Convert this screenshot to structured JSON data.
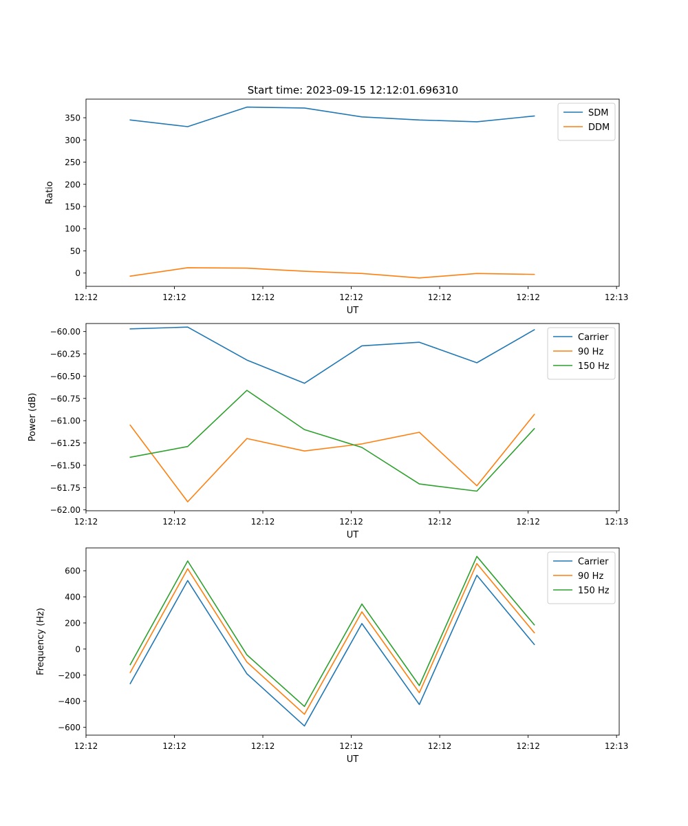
{
  "figure": {
    "title": "Start time: 2023-09-15 12:12:01.696310"
  },
  "colors": {
    "blue": "#1f77b4",
    "orange": "#ff7f0e",
    "green": "#2ca02c",
    "axes": "#000000",
    "legend_border": "#cccccc"
  },
  "chart_data": [
    {
      "type": "line",
      "title": "Start time: 2023-09-15 12:12:01.696310",
      "xlabel": "UT",
      "ylabel": "Ratio",
      "x": [
        0.5,
        1.15,
        1.82,
        2.47,
        3.12,
        3.77,
        4.42,
        5.07
      ],
      "xlim": [
        0,
        6.03
      ],
      "xticks": [
        {
          "value": 0,
          "label": "12:12"
        },
        {
          "value": 1,
          "label": "12:12"
        },
        {
          "value": 2,
          "label": "12:12"
        },
        {
          "value": 3,
          "label": "12:12"
        },
        {
          "value": 4,
          "label": "12:12"
        },
        {
          "value": 5,
          "label": "12:12"
        },
        {
          "value": 6,
          "label": "12:13"
        }
      ],
      "ylim": [
        -30,
        392
      ],
      "yticks": [
        0,
        50,
        100,
        150,
        200,
        250,
        300,
        350
      ],
      "legend": "upper right",
      "series": [
        {
          "name": "SDM",
          "color": "blue",
          "values": [
            345,
            330,
            374,
            372,
            352,
            345,
            341,
            354
          ]
        },
        {
          "name": "DDM",
          "color": "orange",
          "values": [
            -7,
            12,
            11,
            4,
            -1,
            -11,
            -1,
            -3
          ]
        }
      ]
    },
    {
      "type": "line",
      "xlabel": "UT",
      "ylabel": "Power (dB)",
      "x": [
        0.5,
        1.15,
        1.82,
        2.47,
        3.12,
        3.77,
        4.42,
        5.07
      ],
      "xlim": [
        0,
        6.03
      ],
      "xticks": [
        {
          "value": 0,
          "label": "12:12"
        },
        {
          "value": 1,
          "label": "12:12"
        },
        {
          "value": 2,
          "label": "12:12"
        },
        {
          "value": 3,
          "label": "12:12"
        },
        {
          "value": 4,
          "label": "12:12"
        },
        {
          "value": 5,
          "label": "12:12"
        },
        {
          "value": 6,
          "label": "12:13"
        }
      ],
      "ylim": [
        -62.01,
        -59.91
      ],
      "yticks": [
        -62.0,
        -61.75,
        -61.5,
        -61.25,
        -61.0,
        -60.75,
        -60.5,
        -60.25,
        -60.0
      ],
      "yticklabels": [
        "−62.00",
        "−61.75",
        "−61.50",
        "−61.25",
        "−61.00",
        "−60.75",
        "−60.50",
        "−60.25",
        "−60.00"
      ],
      "legend": "upper right",
      "series": [
        {
          "name": "Carrier",
          "color": "blue",
          "values": [
            -59.97,
            -59.95,
            -60.32,
            -60.58,
            -60.16,
            -60.12,
            -60.35,
            -59.98
          ]
        },
        {
          "name": "90 Hz",
          "color": "orange",
          "values": [
            -61.05,
            -61.91,
            -61.2,
            -61.34,
            -61.26,
            -61.13,
            -61.73,
            -60.93
          ]
        },
        {
          "name": "150 Hz",
          "color": "green",
          "values": [
            -61.41,
            -61.29,
            -60.66,
            -61.1,
            -61.3,
            -61.71,
            -61.79,
            -61.09
          ]
        }
      ]
    },
    {
      "type": "line",
      "xlabel": "UT",
      "ylabel": "Frequency (Hz)",
      "x": [
        0.5,
        1.15,
        1.82,
        2.47,
        3.12,
        3.77,
        4.42,
        5.07
      ],
      "xlim": [
        0,
        6.03
      ],
      "xticks": [
        {
          "value": 0,
          "label": "12:12"
        },
        {
          "value": 1,
          "label": "12:12"
        },
        {
          "value": 2,
          "label": "12:12"
        },
        {
          "value": 3,
          "label": "12:12"
        },
        {
          "value": 4,
          "label": "12:12"
        },
        {
          "value": 5,
          "label": "12:12"
        },
        {
          "value": 6,
          "label": "12:13"
        }
      ],
      "ylim": [
        -660,
        775
      ],
      "yticks": [
        -600,
        -400,
        -200,
        0,
        200,
        400,
        600
      ],
      "yticklabels": [
        "−600",
        "−400",
        "−200",
        "0",
        "200",
        "400",
        "600"
      ],
      "legend": "upper right",
      "series": [
        {
          "name": "Carrier",
          "color": "blue",
          "values": [
            -265,
            525,
            -190,
            -590,
            195,
            -425,
            565,
            35
          ]
        },
        {
          "name": "90 Hz",
          "color": "orange",
          "values": [
            -180,
            615,
            -100,
            -500,
            285,
            -335,
            655,
            125
          ]
        },
        {
          "name": "150 Hz",
          "color": "green",
          "values": [
            -120,
            675,
            -45,
            -440,
            345,
            -280,
            710,
            185
          ]
        }
      ]
    }
  ]
}
